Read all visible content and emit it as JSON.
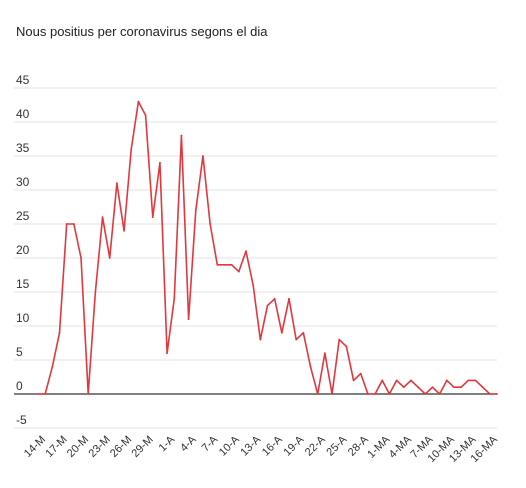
{
  "chart_data": {
    "type": "line",
    "title": "Nous positius per coronavirus segons el dia",
    "xlabel": "",
    "ylabel": "",
    "ylim": [
      -5,
      45
    ],
    "yticks": [
      -5,
      0,
      5,
      10,
      15,
      20,
      25,
      30,
      35,
      40,
      45
    ],
    "grid": true,
    "legend": "none",
    "x_tick_labels": [
      "14-M",
      "17-M",
      "20-M",
      "23-M",
      "26-M",
      "29-M",
      "1-A",
      "4-A",
      "7-A",
      "10-A",
      "13-A",
      "16-A",
      "19-A",
      "22-A",
      "25-A",
      "28-A",
      "1-MA",
      "4-MA",
      "7-MA",
      "10-MA",
      "13-MA",
      "16-MA"
    ],
    "x_tick_every": 3,
    "series": [
      {
        "color": "#e0383e",
        "values": [
          0,
          0,
          4,
          9,
          25,
          25,
          20,
          0,
          15,
          26,
          20,
          31,
          24,
          36,
          43,
          41,
          26,
          34,
          6,
          14,
          38,
          11,
          27,
          35,
          25,
          19,
          19,
          19,
          18,
          21,
          16,
          8,
          13,
          14,
          9,
          14,
          8,
          9,
          4,
          0,
          6,
          0,
          8,
          7,
          2,
          3,
          0,
          0,
          2,
          0,
          2,
          1,
          2,
          1,
          0,
          1,
          0,
          2,
          1,
          1,
          2,
          2,
          1,
          0,
          0
        ]
      }
    ]
  }
}
